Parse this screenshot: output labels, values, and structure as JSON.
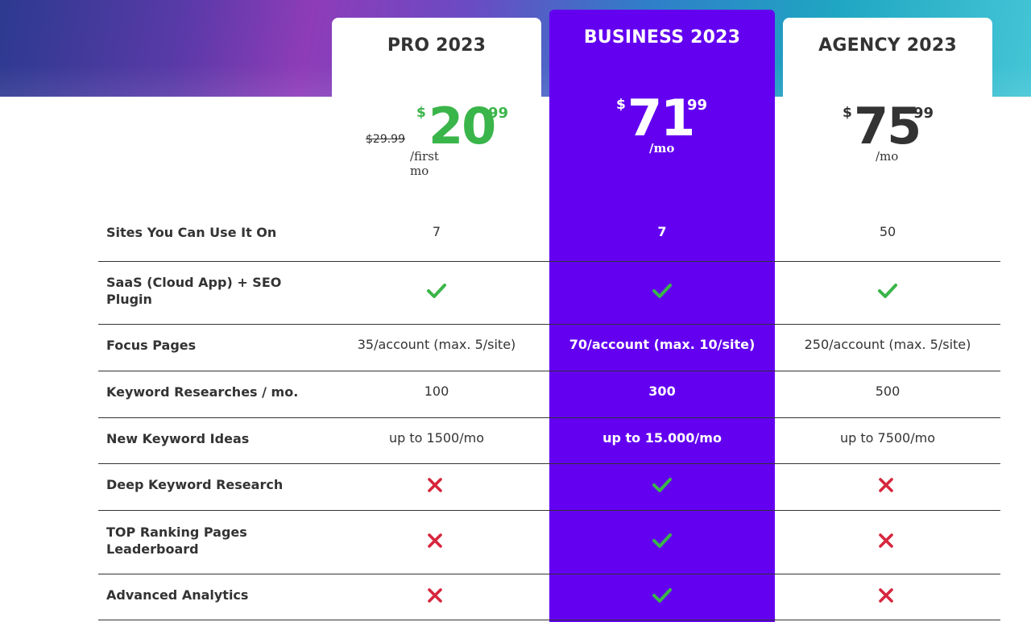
{
  "colors": {
    "business_bg": "#6300f0",
    "check": "#3ab54a",
    "cross": "#d7263d",
    "promo_price": "#3ab54a"
  },
  "plans": [
    {
      "id": "pro",
      "title": "PRO 2023",
      "old_price": "$29.99",
      "currency": "$",
      "price": "20",
      "cents": "99",
      "period": "/first mo"
    },
    {
      "id": "business",
      "title": "BUSINESS 2023",
      "currency": "$",
      "price": "71",
      "cents": "99",
      "period": "/mo"
    },
    {
      "id": "agency",
      "title": "AGENCY 2023",
      "currency": "$",
      "price": "75",
      "cents": "99",
      "period": "/mo"
    }
  ],
  "features": [
    {
      "label": "Sites You Can Use It On",
      "values": [
        "7",
        "7",
        "50"
      ]
    },
    {
      "label": "SaaS (Cloud App) + SEO Plugin",
      "values": [
        "check-icon",
        "check-icon",
        "check-icon"
      ]
    },
    {
      "label": "Focus Pages",
      "values": [
        "35/account (max. 5/site)",
        "70/account (max. 10/site)",
        "250/account (max. 5/site)"
      ]
    },
    {
      "label": "Keyword Researches / mo.",
      "values": [
        "100",
        "300",
        "500"
      ]
    },
    {
      "label": "New Keyword Ideas",
      "values": [
        "up to 1500/mo",
        "up to 15.000/mo",
        "up to 7500/mo"
      ]
    },
    {
      "label": "Deep Keyword Research",
      "values": [
        "cross-icon",
        "check-icon",
        "cross-icon"
      ]
    },
    {
      "label": "TOP Ranking Pages Leaderboard",
      "values": [
        "cross-icon",
        "check-icon",
        "cross-icon"
      ]
    },
    {
      "label": "Advanced Analytics",
      "values": [
        "cross-icon",
        "check-icon",
        "cross-icon"
      ]
    }
  ]
}
